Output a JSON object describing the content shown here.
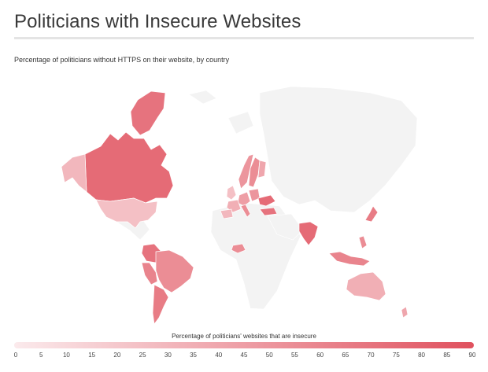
{
  "header": {
    "title": "Politicians with Insecure Websites",
    "subtitle": "Percentage of politicians without HTTPS on their website, by country"
  },
  "legend": {
    "title": "Percentage of politicians' websites that are insecure",
    "ticks": [
      "0",
      "5",
      "10",
      "15",
      "20",
      "25",
      "30",
      "35",
      "40",
      "45",
      "50",
      "55",
      "60",
      "65",
      "70",
      "75",
      "80",
      "85",
      "90"
    ],
    "min": 0,
    "max": 90,
    "color_low": "#fbeaec",
    "color_high": "#e0515e"
  },
  "colors": {
    "land_nodata": "#f3f3f3",
    "scale_low": "#fbeaec",
    "scale_high": "#e0515e"
  },
  "map": {
    "regions": [
      {
        "id": "greenland",
        "value": 70
      },
      {
        "id": "canada",
        "value": 75
      },
      {
        "id": "alaska",
        "value": 30
      },
      {
        "id": "usa",
        "value": 25
      },
      {
        "id": "colombia",
        "value": 70
      },
      {
        "id": "peru",
        "value": 60
      },
      {
        "id": "brazil",
        "value": 55
      },
      {
        "id": "argentina",
        "value": 65
      },
      {
        "id": "norway",
        "value": 50
      },
      {
        "id": "sweden",
        "value": 55
      },
      {
        "id": "finland",
        "value": 40
      },
      {
        "id": "uk",
        "value": 25
      },
      {
        "id": "germany",
        "value": 45
      },
      {
        "id": "poland",
        "value": 50
      },
      {
        "id": "france",
        "value": 35
      },
      {
        "id": "spain",
        "value": 30
      },
      {
        "id": "italy",
        "value": 55
      },
      {
        "id": "ukraine",
        "value": 75
      },
      {
        "id": "turkey",
        "value": 70
      },
      {
        "id": "nigeria",
        "value": 55
      },
      {
        "id": "india",
        "value": 75
      },
      {
        "id": "japan",
        "value": 65
      },
      {
        "id": "philippines",
        "value": 55
      },
      {
        "id": "indonesia",
        "value": 60
      },
      {
        "id": "australia",
        "value": 35
      },
      {
        "id": "new_zealand",
        "value": 40
      }
    ]
  }
}
